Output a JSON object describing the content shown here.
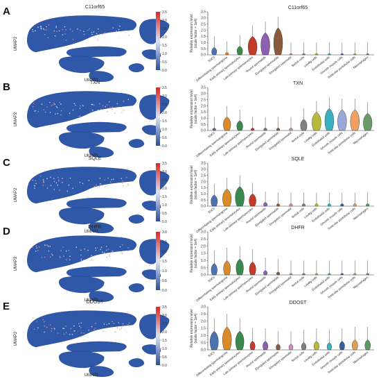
{
  "colorbar": {
    "ticks": [
      "0.0",
      "0.5",
      "1.0",
      "1.5",
      "2.0",
      "2.5",
      "3.0",
      "3.5"
    ],
    "colors": [
      "#2b4c9b",
      "#dde3f0",
      "#d62728"
    ]
  },
  "umap_axes": {
    "x": "UMAP1",
    "y": "UMAP2"
  },
  "violin_ylabel": [
    "Relative expression level",
    "(scale factor = 1e4)"
  ],
  "categories": [
    "SSCs",
    "Differentiating spermatogonia",
    "Early primary spermatocytes",
    "Late primary spermatocytes",
    "Round spermatids",
    "Elongated spermatids",
    "Elongated spermatid",
    "Sertoli cells",
    "Leydig cells",
    "Endothelial cells",
    "Smooth muscle cells",
    "Testicular peritubular cells",
    "Macrophages"
  ],
  "panels": [
    {
      "label": "A",
      "gene": "C11orf65",
      "colorbar_max": 3.5,
      "chart_data": {
        "type": "violin",
        "title": "C11orf65",
        "ylim": [
          0,
          3.5
        ],
        "yticks": [
          0,
          0.5,
          1.0,
          1.5,
          2.0,
          2.5,
          3.0,
          3.5
        ],
        "values": [
          0.6,
          0.2,
          0.7,
          1.5,
          1.8,
          2.2,
          0.1,
          0.1,
          0.1,
          0.1,
          0.1,
          0.1,
          0.1
        ],
        "colors": [
          "#4b73b0",
          "#d98a2b",
          "#3a8a50",
          "#c23b2b",
          "#8e5fb0",
          "#8b5a3c",
          "#d48ac0",
          "#808080",
          "#b8b83a",
          "#3ab0c0",
          "#3a5fa0",
          "#e0a050",
          "#5a9a5a"
        ]
      }
    },
    {
      "label": "B",
      "gene": "TXN",
      "colorbar_max": 3.5,
      "chart_data": {
        "type": "violin",
        "title": "TXN",
        "ylim": [
          0,
          3.5
        ],
        "yticks": [
          0,
          0.5,
          1.0,
          1.5,
          2.0,
          2.5,
          3.0,
          3.5
        ],
        "values": [
          0.2,
          1.1,
          0.8,
          0.2,
          0.2,
          0.2,
          0.2,
          0.9,
          1.5,
          1.8,
          1.7,
          1.7,
          1.4
        ],
        "colors": [
          "#4b73b0",
          "#d98a2b",
          "#3a8a50",
          "#c23b2b",
          "#8e5fb0",
          "#8b5a3c",
          "#d48ac0",
          "#808080",
          "#b8b83a",
          "#3ab0c0",
          "#9aa8d8",
          "#f0a060",
          "#6a9a6a"
        ]
      }
    },
    {
      "label": "C",
      "gene": "SQLE",
      "colorbar_max": 3.5,
      "chart_data": {
        "type": "violin",
        "title": "SQLE",
        "ylim": [
          0,
          3.5
        ],
        "yticks": [
          0,
          0.5,
          1.0,
          1.5,
          2.0,
          2.5,
          3.0,
          3.5
        ],
        "values": [
          0.9,
          1.4,
          1.6,
          1.0,
          0.3,
          0.2,
          0.2,
          0.2,
          0.2,
          0.2,
          0.2,
          0.2,
          0.2
        ],
        "colors": [
          "#4b73b0",
          "#d98a2b",
          "#3a8a50",
          "#c23b2b",
          "#8e5fb0",
          "#8b5a3c",
          "#d48ac0",
          "#808080",
          "#b8b83a",
          "#3ab0c0",
          "#3a5fa0",
          "#e0a050",
          "#5a9a5a"
        ]
      }
    },
    {
      "label": "D",
      "gene": "DHFR",
      "colorbar_max": 3.0,
      "chart_data": {
        "type": "violin",
        "title": "DHFR",
        "ylim": [
          0,
          3.0
        ],
        "yticks": [
          0,
          0.5,
          1.0,
          1.5,
          2.0,
          2.5,
          3.0
        ],
        "values": [
          0.8,
          1.0,
          1.1,
          0.9,
          0.3,
          0.2,
          0.1,
          0.1,
          0.1,
          0.1,
          0.1,
          0.1,
          0.1
        ],
        "colors": [
          "#4b73b0",
          "#d98a2b",
          "#3a8a50",
          "#c23b2b",
          "#8e5fb0",
          "#8b5a3c",
          "#d48ac0",
          "#808080",
          "#b8b83a",
          "#3ab0c0",
          "#3a5fa0",
          "#e0a050",
          "#5a9a5a"
        ]
      }
    },
    {
      "label": "E",
      "gene": "DDOST",
      "colorbar_max": 3.5,
      "chart_data": {
        "type": "violin",
        "title": "DDOST",
        "ylim": [
          0,
          3.0
        ],
        "yticks": [
          0,
          0.5,
          1.0,
          1.5,
          2.0,
          2.5,
          3.0
        ],
        "values": [
          1.3,
          1.6,
          1.3,
          0.6,
          0.6,
          0.4,
          0.4,
          0.5,
          0.6,
          0.5,
          0.6,
          0.7,
          0.7
        ],
        "colors": [
          "#4b73b0",
          "#d98a2b",
          "#3a8a50",
          "#c23b2b",
          "#8e5fb0",
          "#8b5a3c",
          "#d48ac0",
          "#808080",
          "#b8b83a",
          "#3ab0c0",
          "#3a5fa0",
          "#e0a050",
          "#5a9a5a"
        ]
      }
    }
  ]
}
